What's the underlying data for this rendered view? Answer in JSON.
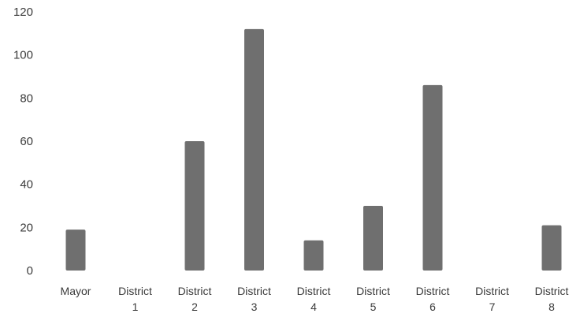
{
  "chart_data": {
    "type": "bar",
    "categories": [
      [
        "Mayor"
      ],
      [
        "District",
        "1"
      ],
      [
        "District",
        "2"
      ],
      [
        "District",
        "3"
      ],
      [
        "District",
        "4"
      ],
      [
        "District",
        "5"
      ],
      [
        "District",
        "6"
      ],
      [
        "District",
        "7"
      ],
      [
        "District",
        "8"
      ]
    ],
    "values": [
      19,
      0,
      60,
      112,
      14,
      30,
      86,
      0,
      21
    ],
    "ylim": [
      0,
      120
    ],
    "yticks": [
      0,
      20,
      40,
      60,
      80,
      100,
      120
    ],
    "title": "",
    "xlabel": "",
    "ylabel": "",
    "grid": false,
    "legend": "none",
    "colors": {
      "bar": "#6f6f6f",
      "text": "#3a3a3a"
    }
  }
}
